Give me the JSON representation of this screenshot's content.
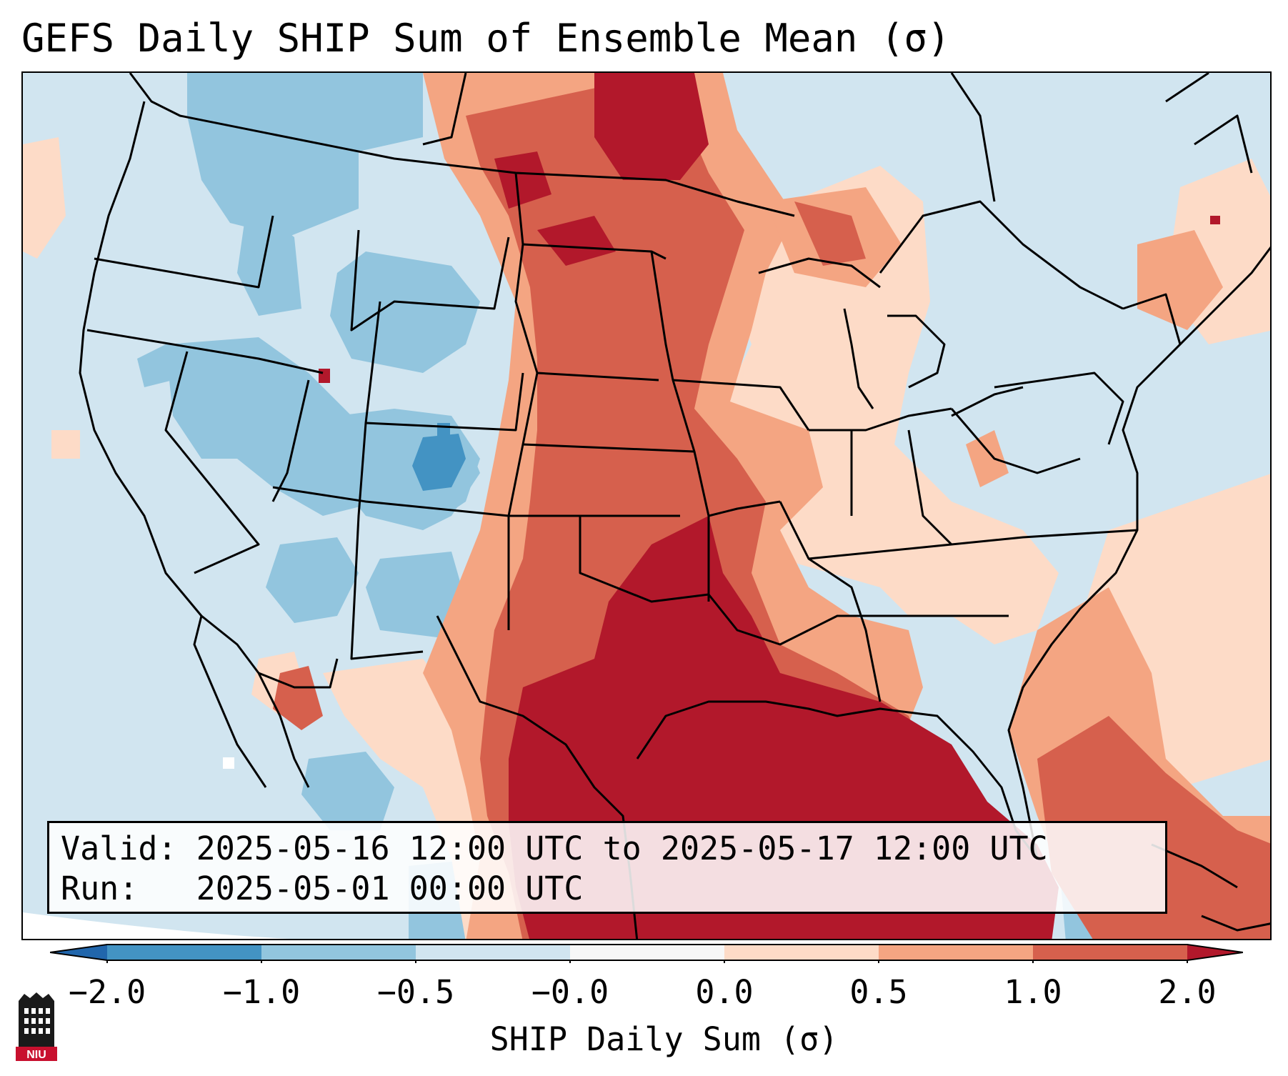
{
  "title": "GEFS Daily SHIP Sum of Ensemble Mean (σ)",
  "valid_line": "Valid: 2025-05-16 12:00 UTC to 2025-05-17 12:00 UTC",
  "run_line": "Run:   2025-05-01 00:00 UTC",
  "colorbar": {
    "label": "SHIP Daily Sum (σ)",
    "ticks": [
      "−2.0",
      "−1.0",
      "−0.5",
      "−0.0",
      "0.0",
      "0.5",
      "1.0",
      "2.0"
    ],
    "bins": [
      {
        "from": "-inf",
        "to": -2.0,
        "color": "#2166ac"
      },
      {
        "from": -2.0,
        "to": -1.0,
        "color": "#4393c3"
      },
      {
        "from": -1.0,
        "to": -0.5,
        "color": "#92c5de"
      },
      {
        "from": -0.5,
        "to": -0.0,
        "color": "#d1e5f0"
      },
      {
        "from": -0.0,
        "to": 0.0,
        "color": "#f7f7f7"
      },
      {
        "from": 0.0,
        "to": 0.5,
        "color": "#fddbc7"
      },
      {
        "from": 0.5,
        "to": 1.0,
        "color": "#f4a582"
      },
      {
        "from": 1.0,
        "to": 2.0,
        "color": "#d6604d"
      },
      {
        "from": 2.0,
        "to": "inf",
        "color": "#b2182b"
      }
    ]
  },
  "logo": {
    "text": "NIU",
    "icon": "university-tower-logo",
    "color": "#c8102e"
  }
}
